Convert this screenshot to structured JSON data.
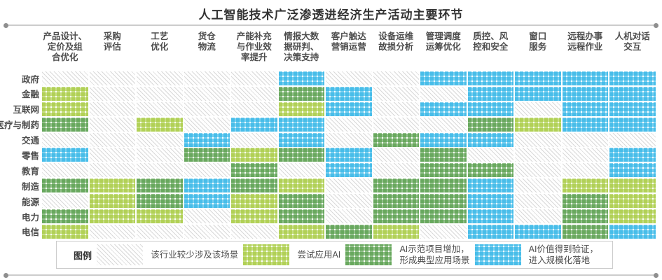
{
  "title": "人工智能技术广泛渗透进经济生产活动主要环节",
  "legend": {
    "title": "图例",
    "items": [
      {
        "key": "R",
        "label": "该行业较少涉及该场景"
      },
      {
        "key": "T",
        "label": "尝试应用AI"
      },
      {
        "key": "D",
        "label": "AI示范项目增加，\n形成典型应用场景"
      },
      {
        "key": "S",
        "label": "AI价值得到验证，\n进入规模化落地"
      }
    ]
  },
  "colors": {
    "rare_hatch": "#d9d9d9",
    "try_green": "#a4c93a",
    "demo_green": "#4f9a43",
    "scale_blue": "#29b2e5",
    "label_text": "#4d4d4d",
    "title_text": "#333333"
  },
  "chart_data": {
    "type": "heatmap",
    "title": "人工智能技术广泛渗透进经济生产活动主要环节",
    "x": [
      "产品设计、\n定价及组\n合优化",
      "采购\n评估",
      "工艺\n优化",
      "货仓\n物流",
      "产能补充\n与作业效\n率提升",
      "情报大数\n据研判、\n决策支持",
      "客户触达\n营销运营",
      "设备运维\n故损分析",
      "管理调度\n运筹优化",
      "质控、风\n控和安全",
      "窗口\n服务",
      "远程办事\n远程作业",
      "人机对话\n交互"
    ],
    "y": [
      "政府",
      "金融",
      "互联网",
      "医疗与制药",
      "交通",
      "零售",
      "教育",
      "制造",
      "能源",
      "电力",
      "电信"
    ],
    "categories": {
      "R": "该行业较少涉及该场景",
      "T": "尝试应用AI",
      "D": "AI示范项目增加，形成典型应用场景",
      "S": "AI价值得到验证，进入规模化落地"
    },
    "values": [
      [
        "R",
        "R",
        "R",
        "R",
        "R",
        "S",
        "R",
        "R",
        "S",
        "S",
        "S",
        "S",
        "S"
      ],
      [
        "T",
        "R",
        "R",
        "R",
        "R",
        "D",
        "S",
        "R",
        "R",
        "S",
        "S",
        "S",
        "S"
      ],
      [
        "T",
        "R",
        "R",
        "R",
        "R",
        "T",
        "S",
        "R",
        "S",
        "S",
        "R",
        "S",
        "S"
      ],
      [
        "D",
        "R",
        "T",
        "R",
        "S",
        "S",
        "R",
        "R",
        "R",
        "D",
        "T",
        "S",
        "S"
      ],
      [
        "R",
        "R",
        "R",
        "S",
        "R",
        "S",
        "R",
        "D",
        "S",
        "S",
        "R",
        "R",
        "R"
      ],
      [
        "S",
        "R",
        "R",
        "D",
        "T",
        "D",
        "S",
        "R",
        "D",
        "R",
        "R",
        "R",
        "S"
      ],
      [
        "R",
        "R",
        "R",
        "R",
        "D",
        "R",
        "S",
        "R",
        "D",
        "D",
        "R",
        "R",
        "S"
      ],
      [
        "D",
        "T",
        "D",
        "S",
        "D",
        "T",
        "R",
        "D",
        "D",
        "S",
        "R",
        "T",
        "T"
      ],
      [
        "R",
        "T",
        "D",
        "S",
        "T",
        "D",
        "R",
        "D",
        "D",
        "S",
        "R",
        "D",
        "T"
      ],
      [
        "D",
        "T",
        "T",
        "R",
        "T",
        "D",
        "R",
        "D",
        "D",
        "S",
        "R",
        "D",
        "T"
      ],
      [
        "T",
        "R",
        "R",
        "R",
        "R",
        "T",
        "D",
        "T",
        "R",
        "S",
        "S",
        "D",
        "S"
      ]
    ]
  }
}
